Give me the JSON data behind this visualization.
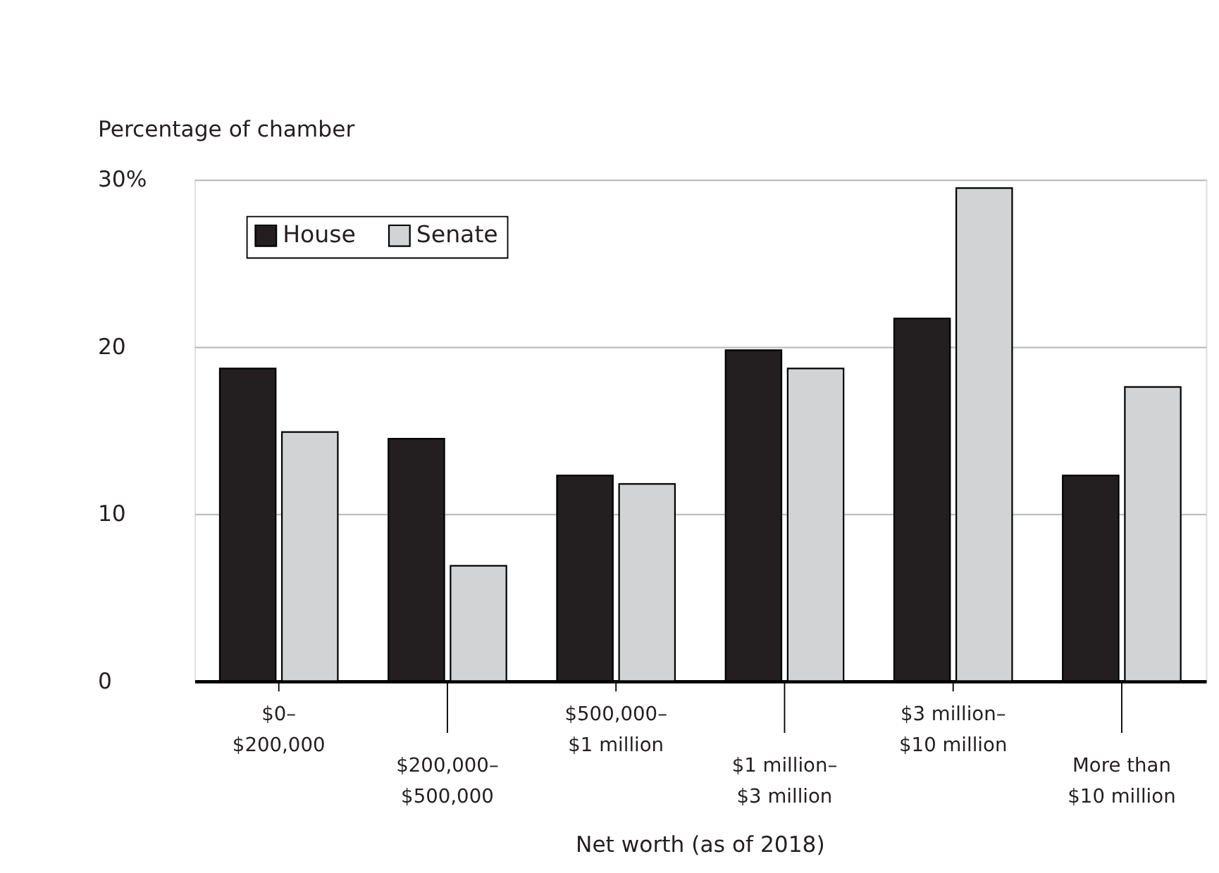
{
  "chart_data": {
    "type": "bar",
    "categories": [
      "$0–\n$200,000",
      "$200,000–\n$500,000",
      "$500,000–\n$1 million",
      "$1 million–\n$3 million",
      "$3 million–\n$10 million",
      "More than\n$10 million"
    ],
    "series": [
      {
        "name": "House",
        "color": "#231f20",
        "values": [
          18.7,
          14.5,
          12.3,
          19.8,
          21.7,
          12.3
        ]
      },
      {
        "name": "Senate",
        "color": "#d1d3d4",
        "values": [
          14.9,
          6.9,
          11.8,
          18.7,
          29.5,
          17.6
        ]
      }
    ],
    "xlabel": "Net worth (as of 2018)",
    "ylabel": "Percentage of chamber",
    "ylim": [
      0,
      30
    ],
    "yticks": [
      0,
      10,
      20,
      {
        "value": 30,
        "label": "30%"
      }
    ],
    "grid": "y",
    "legend": "top left"
  }
}
